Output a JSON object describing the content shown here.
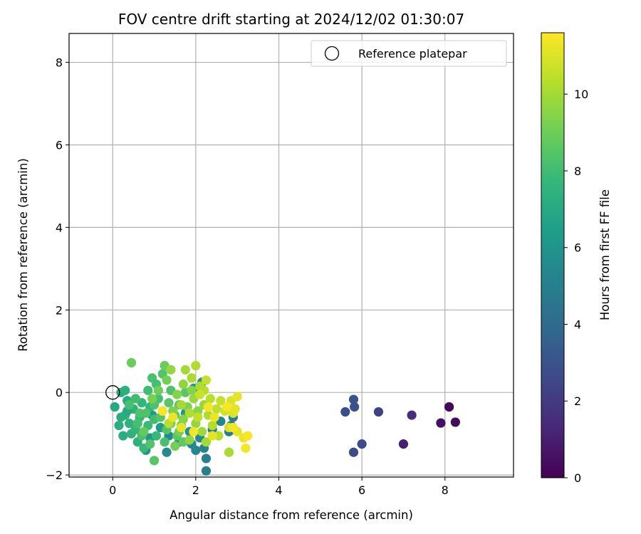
{
  "chart_data": {
    "type": "scatter",
    "title": "FOV centre drift starting at 2024/12/02 01:30:07",
    "xlabel": "Angular distance from reference (arcmin)",
    "ylabel": "Rotation from reference (arcmin)",
    "xlim": [
      -1.05,
      9.65
    ],
    "ylim": [
      -2.05,
      8.7
    ],
    "xticks": [
      "0",
      "2",
      "4",
      "6",
      "8"
    ],
    "yticks": [
      "−2",
      "0",
      "2",
      "4",
      "6",
      "8"
    ],
    "grid": true,
    "legend": {
      "label": "Reference platepar",
      "position": "top-right"
    },
    "reference_point": {
      "x": 0,
      "y": 0
    },
    "colorbar": {
      "label": "Hours from first FF file",
      "colormap": "viridis",
      "range": [
        0,
        11.6
      ],
      "ticks": [
        "0",
        "2",
        "4",
        "6",
        "8",
        "10"
      ]
    },
    "colormap_stops": [
      "#440154",
      "#482878",
      "#3e4989",
      "#31688e",
      "#26828e",
      "#1f9e89",
      "#35b779",
      "#6ece58",
      "#b5de2b",
      "#fde725"
    ],
    "points": [
      {
        "x": 8.1,
        "y": -0.35,
        "h": 0.2
      },
      {
        "x": 8.25,
        "y": -0.72,
        "h": 0.35
      },
      {
        "x": 7.9,
        "y": -0.74,
        "h": 0.5
      },
      {
        "x": 7.0,
        "y": -1.25,
        "h": 1.0
      },
      {
        "x": 7.2,
        "y": -0.55,
        "h": 1.6
      },
      {
        "x": 6.4,
        "y": -0.47,
        "h": 2.3
      },
      {
        "x": 6.0,
        "y": -1.25,
        "h": 2.6
      },
      {
        "x": 5.8,
        "y": -1.45,
        "h": 2.7
      },
      {
        "x": 5.6,
        "y": -0.47,
        "h": 2.8
      },
      {
        "x": 5.82,
        "y": -0.35,
        "h": 2.9
      },
      {
        "x": 5.8,
        "y": -0.17,
        "h": 3.0
      },
      {
        "x": 2.25,
        "y": -1.9,
        "h": 5.0
      },
      {
        "x": 2.25,
        "y": -1.6,
        "h": 5.1
      },
      {
        "x": 2.2,
        "y": -1.35,
        "h": 5.2
      },
      {
        "x": 2.0,
        "y": -1.4,
        "h": 5.4
      },
      {
        "x": 2.85,
        "y": -0.8,
        "h": 5.0
      },
      {
        "x": 2.8,
        "y": -0.95,
        "h": 4.8
      },
      {
        "x": 2.9,
        "y": -0.6,
        "h": 4.9
      },
      {
        "x": 2.6,
        "y": -0.7,
        "h": 5.3
      },
      {
        "x": 2.4,
        "y": -0.9,
        "h": 5.2
      },
      {
        "x": 2.1,
        "y": -1.1,
        "h": 5.5
      },
      {
        "x": 1.9,
        "y": -1.25,
        "h": 5.4
      },
      {
        "x": 1.3,
        "y": -1.45,
        "h": 5.6
      },
      {
        "x": 1.35,
        "y": -1.05,
        "h": 5.5
      },
      {
        "x": 1.6,
        "y": -1.2,
        "h": 5.7
      },
      {
        "x": 0.8,
        "y": -1.4,
        "h": 6.0
      },
      {
        "x": 0.9,
        "y": -1.1,
        "h": 6.1
      },
      {
        "x": 0.95,
        "y": -0.55,
        "h": 6.2
      },
      {
        "x": 1.15,
        "y": -0.85,
        "h": 6.3
      },
      {
        "x": 1.85,
        "y": -0.95,
        "h": 5.9
      },
      {
        "x": 1.95,
        "y": 0.1,
        "h": 6.0
      },
      {
        "x": 2.15,
        "y": 0.25,
        "h": 5.8
      },
      {
        "x": 1.75,
        "y": -0.5,
        "h": 6.1
      },
      {
        "x": 0.05,
        "y": -0.35,
        "h": 7.0
      },
      {
        "x": 0.15,
        "y": -0.8,
        "h": 7.2
      },
      {
        "x": 0.2,
        "y": 0.0,
        "h": 7.1
      },
      {
        "x": 0.3,
        "y": 0.05,
        "h": 7.3
      },
      {
        "x": 0.25,
        "y": -1.05,
        "h": 7.2
      },
      {
        "x": 0.3,
        "y": -0.55,
        "h": 7.4
      },
      {
        "x": 0.35,
        "y": -0.2,
        "h": 7.1
      },
      {
        "x": 0.4,
        "y": -0.75,
        "h": 7.5
      },
      {
        "x": 0.5,
        "y": -0.4,
        "h": 7.3
      },
      {
        "x": 0.55,
        "y": -0.9,
        "h": 7.6
      },
      {
        "x": 0.6,
        "y": -1.2,
        "h": 7.4
      },
      {
        "x": 0.65,
        "y": -0.6,
        "h": 7.7
      },
      {
        "x": 0.7,
        "y": -0.25,
        "h": 7.6
      },
      {
        "x": 0.75,
        "y": -1.35,
        "h": 7.8
      },
      {
        "x": 0.45,
        "y": -1.0,
        "h": 7.5
      },
      {
        "x": 0.2,
        "y": -0.6,
        "h": 7.2
      },
      {
        "x": 0.35,
        "y": -0.45,
        "h": 7.0
      },
      {
        "x": 0.85,
        "y": -0.8,
        "h": 7.9
      },
      {
        "x": 0.9,
        "y": -0.35,
        "h": 7.7
      },
      {
        "x": 1.0,
        "y": -0.65,
        "h": 8.0
      },
      {
        "x": 1.05,
        "y": -1.05,
        "h": 7.8
      },
      {
        "x": 1.1,
        "y": -0.15,
        "h": 8.1
      },
      {
        "x": 1.2,
        "y": -0.45,
        "h": 7.9
      },
      {
        "x": 1.25,
        "y": -1.2,
        "h": 8.2
      },
      {
        "x": 0.55,
        "y": -0.15,
        "h": 8.0
      },
      {
        "x": 0.6,
        "y": -0.75,
        "h": 8.1
      },
      {
        "x": 0.7,
        "y": -1.05,
        "h": 8.2
      },
      {
        "x": 0.8,
        "y": -0.5,
        "h": 8.3
      },
      {
        "x": 0.85,
        "y": 0.05,
        "h": 8.0
      },
      {
        "x": 0.9,
        "y": -1.25,
        "h": 8.4
      },
      {
        "x": 0.95,
        "y": 0.35,
        "h": 8.2
      },
      {
        "x": 1.0,
        "y": -0.3,
        "h": 8.3
      },
      {
        "x": 1.05,
        "y": 0.2,
        "h": 8.1
      },
      {
        "x": 1.15,
        "y": -0.6,
        "h": 8.5
      },
      {
        "x": 1.3,
        "y": -0.9,
        "h": 8.4
      },
      {
        "x": 1.35,
        "y": -0.25,
        "h": 8.6
      },
      {
        "x": 1.4,
        "y": 0.05,
        "h": 8.3
      },
      {
        "x": 1.5,
        "y": -0.55,
        "h": 8.7
      },
      {
        "x": 1.55,
        "y": -1.05,
        "h": 8.6
      },
      {
        "x": 1.6,
        "y": -0.3,
        "h": 8.5
      },
      {
        "x": 1.65,
        "y": -0.8,
        "h": 8.8
      },
      {
        "x": 1.7,
        "y": -1.2,
        "h": 8.7
      },
      {
        "x": 1.75,
        "y": 0.0,
        "h": 8.6
      },
      {
        "x": 0.75,
        "y": -0.95,
        "h": 8.8
      },
      {
        "x": 1.2,
        "y": 0.45,
        "h": 8.4
      },
      {
        "x": 1.25,
        "y": 0.65,
        "h": 8.9
      },
      {
        "x": 0.45,
        "y": 0.72,
        "h": 8.9
      },
      {
        "x": 1.0,
        "y": -1.65,
        "h": 8.5
      },
      {
        "x": 0.65,
        "y": -0.5,
        "h": 8.3
      },
      {
        "x": 0.4,
        "y": -0.3,
        "h": 8.2
      },
      {
        "x": 1.4,
        "y": -0.75,
        "h": 9.0
      },
      {
        "x": 1.3,
        "y": 0.3,
        "h": 9.1
      },
      {
        "x": 1.1,
        "y": 0.05,
        "h": 9.0
      },
      {
        "x": 0.95,
        "y": -0.15,
        "h": 9.2
      },
      {
        "x": 1.45,
        "y": -0.45,
        "h": 9.3
      },
      {
        "x": 1.5,
        "y": -1.3,
        "h": 9.1
      },
      {
        "x": 1.55,
        "y": -0.05,
        "h": 9.4
      },
      {
        "x": 1.6,
        "y": -0.95,
        "h": 9.2
      },
      {
        "x": 1.7,
        "y": -0.65,
        "h": 9.5
      },
      {
        "x": 1.8,
        "y": -0.35,
        "h": 9.3
      },
      {
        "x": 1.85,
        "y": -1.15,
        "h": 9.6
      },
      {
        "x": 1.9,
        "y": 0.05,
        "h": 9.4
      },
      {
        "x": 2.0,
        "y": -0.75,
        "h": 9.7
      },
      {
        "x": 2.05,
        "y": -0.45,
        "h": 9.5
      },
      {
        "x": 1.95,
        "y": -0.15,
        "h": 9.8
      },
      {
        "x": 1.7,
        "y": 0.2,
        "h": 9.6
      },
      {
        "x": 1.4,
        "y": 0.55,
        "h": 9.7
      },
      {
        "x": 2.15,
        "y": -0.95,
        "h": 9.9
      },
      {
        "x": 2.2,
        "y": -0.3,
        "h": 9.8
      },
      {
        "x": 2.25,
        "y": -1.2,
        "h": 10.0
      },
      {
        "x": 1.75,
        "y": 0.55,
        "h": 10.0
      },
      {
        "x": 1.9,
        "y": 0.35,
        "h": 10.1
      },
      {
        "x": 2.0,
        "y": 0.65,
        "h": 10.2
      },
      {
        "x": 2.1,
        "y": 0.15,
        "h": 10.1
      },
      {
        "x": 2.2,
        "y": 0.05,
        "h": 10.3
      },
      {
        "x": 2.3,
        "y": -0.55,
        "h": 10.2
      },
      {
        "x": 2.35,
        "y": -0.15,
        "h": 10.4
      },
      {
        "x": 2.4,
        "y": -0.8,
        "h": 10.3
      },
      {
        "x": 2.5,
        "y": -0.4,
        "h": 10.5
      },
      {
        "x": 2.55,
        "y": -1.05,
        "h": 10.4
      },
      {
        "x": 2.6,
        "y": -0.2,
        "h": 10.6
      },
      {
        "x": 2.8,
        "y": -1.45,
        "h": 10.1
      },
      {
        "x": 2.05,
        "y": -0.6,
        "h": 10.5
      },
      {
        "x": 1.85,
        "y": -0.5,
        "h": 10.2
      },
      {
        "x": 1.65,
        "y": -0.3,
        "h": 10.0
      },
      {
        "x": 2.25,
        "y": 0.3,
        "h": 10.6
      },
      {
        "x": 2.1,
        "y": -0.05,
        "h": 10.7
      },
      {
        "x": 1.35,
        "y": -0.75,
        "h": 10.4
      },
      {
        "x": 2.7,
        "y": -0.45,
        "h": 10.8
      },
      {
        "x": 2.8,
        "y": -0.85,
        "h": 10.9
      },
      {
        "x": 2.85,
        "y": -0.2,
        "h": 11.0
      },
      {
        "x": 2.9,
        "y": -0.5,
        "h": 11.0
      },
      {
        "x": 2.95,
        "y": -0.4,
        "h": 11.1
      },
      {
        "x": 3.0,
        "y": -0.1,
        "h": 11.2
      },
      {
        "x": 3.0,
        "y": -0.95,
        "h": 11.1
      },
      {
        "x": 3.15,
        "y": -1.1,
        "h": 11.3
      },
      {
        "x": 3.2,
        "y": -1.35,
        "h": 11.4
      },
      {
        "x": 3.25,
        "y": -1.05,
        "h": 11.5
      },
      {
        "x": 2.4,
        "y": -1.05,
        "h": 11.2
      },
      {
        "x": 2.45,
        "y": -0.6,
        "h": 11.3
      },
      {
        "x": 2.3,
        "y": -0.35,
        "h": 11.4
      },
      {
        "x": 2.75,
        "y": -0.35,
        "h": 11.5
      },
      {
        "x": 2.9,
        "y": -0.85,
        "h": 11.4
      },
      {
        "x": 1.2,
        "y": -0.45,
        "h": 11.5
      },
      {
        "x": 1.45,
        "y": -0.6,
        "h": 11.3
      },
      {
        "x": 1.65,
        "y": -0.85,
        "h": 11.2
      },
      {
        "x": 1.95,
        "y": -0.95,
        "h": 11.4
      }
    ]
  }
}
